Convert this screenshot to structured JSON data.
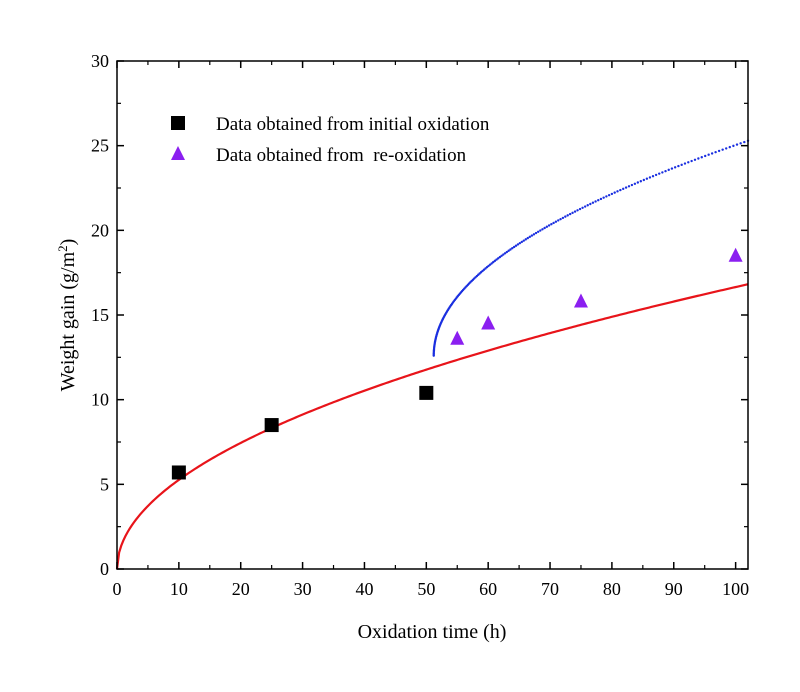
{
  "chart_data": {
    "type": "scatter",
    "xlabel": "Oxidation time (h)",
    "ylabel_main": "Weight gain (g/m",
    "ylabel_sup": "2",
    "ylabel_end": ")",
    "xlim": [
      0,
      102
    ],
    "ylim": [
      0,
      30
    ],
    "x_ticks": [
      0,
      10,
      20,
      30,
      40,
      50,
      60,
      70,
      80,
      90,
      100
    ],
    "y_ticks": [
      0,
      5,
      10,
      15,
      20,
      25,
      30
    ],
    "grid": false,
    "legend_position": "top-left",
    "series": [
      {
        "name": "Data obtained from initial oxidation",
        "marker": "square",
        "color": "#000000",
        "points": [
          [
            10,
            5.7
          ],
          [
            25,
            8.5
          ],
          [
            50,
            10.4
          ]
        ]
      },
      {
        "name": "Data obtained from  re-oxidation",
        "marker": "triangle",
        "color": "#8b1ff0",
        "points": [
          [
            55,
            13.6
          ],
          [
            60,
            14.5
          ],
          [
            75,
            15.8
          ],
          [
            100,
            18.5
          ]
        ]
      }
    ],
    "fit_curves": [
      {
        "color": "#e8141a",
        "style": "solid",
        "x_start": 0,
        "x_end": 102,
        "coef": 1.665
      },
      {
        "color": "#1a2fe0",
        "style": "dotted",
        "x_start": 51.2,
        "x_end": 102,
        "coef": 1.78,
        "offset": 12.6
      }
    ]
  }
}
